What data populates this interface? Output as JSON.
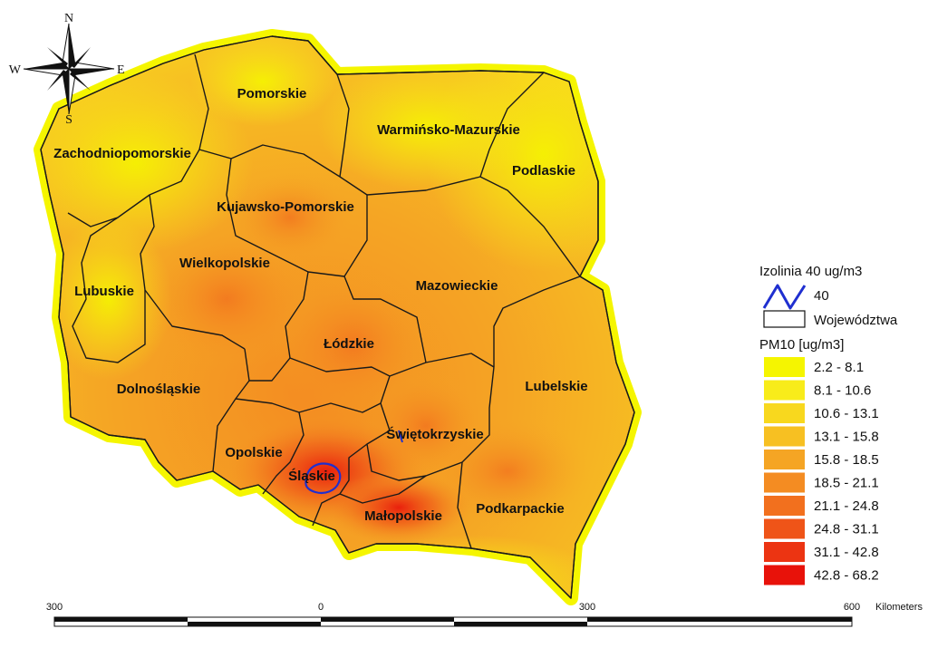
{
  "map": {
    "regions": [
      {
        "name": "Pomorskie"
      },
      {
        "name": "Warmińsko-Mazurskie"
      },
      {
        "name": "Zachodniopomorskie"
      },
      {
        "name": "Podlaskie"
      },
      {
        "name": "Kujawsko-Pomorskie"
      },
      {
        "name": "Wielkopolskie"
      },
      {
        "name": "Mazowieckie"
      },
      {
        "name": "Lubuskie"
      },
      {
        "name": "Łódzkie"
      },
      {
        "name": "Dolnośląskie"
      },
      {
        "name": "Lubelskie"
      },
      {
        "name": "Świętokrzyskie"
      },
      {
        "name": "Opolskie"
      },
      {
        "name": "Śląskie"
      },
      {
        "name": "Małopolskie"
      },
      {
        "name": "Podkarpackie"
      }
    ]
  },
  "compass": {
    "n": "N",
    "s": "S",
    "e": "E",
    "w": "W"
  },
  "legend": {
    "isoline_title": "Izolinia 40 ug/m3",
    "isoline_label": "40",
    "isoline_color": "#1f2fd0",
    "border_label": "Województwa",
    "pm_title": "PM10 [ug/m3]",
    "classes": [
      {
        "label": "2.2 - 8.1",
        "color": "#f5f500"
      },
      {
        "label": "8.1 - 10.6",
        "color": "#f8ec1a"
      },
      {
        "label": "10.6 - 13.1",
        "color": "#f8d81e"
      },
      {
        "label": "13.1 - 15.8",
        "color": "#f7c022"
      },
      {
        "label": "15.8 - 18.5",
        "color": "#f5a524"
      },
      {
        "label": "18.5 - 21.1",
        "color": "#f48c22"
      },
      {
        "label": "21.1 - 24.8",
        "color": "#f2701e"
      },
      {
        "label": "24.8 - 31.1",
        "color": "#ef5418"
      },
      {
        "label": "31.1 - 42.8",
        "color": "#ec3412"
      },
      {
        "label": "42.8 - 68.2",
        "color": "#e8120a"
      }
    ]
  },
  "scale": {
    "ticks": [
      "300",
      "0",
      "300",
      "600"
    ],
    "unit": "Kilometers"
  }
}
